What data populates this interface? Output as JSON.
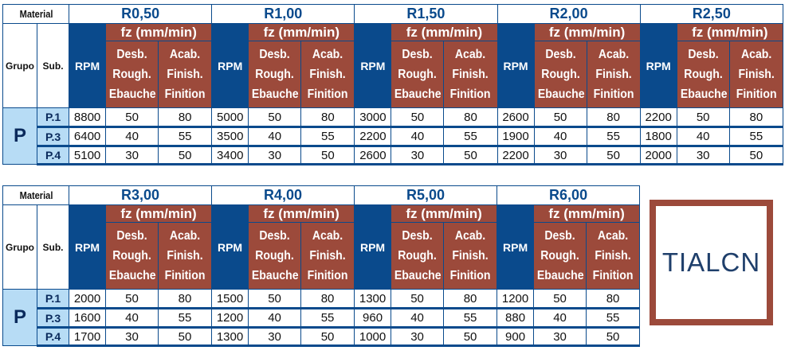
{
  "header": {
    "material": "Material",
    "grupo": "Grupo",
    "sub": "Sub.",
    "rpm": "RPM",
    "fz": "fz (mm/min)",
    "desb": [
      "Desb.",
      "Rough.",
      "Ebauche"
    ],
    "acab": [
      "Acab.",
      "Finish.",
      "Finition"
    ]
  },
  "group": "P",
  "subgroups": [
    "P.1",
    "P.3",
    "P.4"
  ],
  "blocks": [
    {
      "radii": [
        {
          "label": "R0,50",
          "rows": [
            [
              "8800",
              "50",
              "80"
            ],
            [
              "6400",
              "40",
              "55"
            ],
            [
              "5100",
              "30",
              "50"
            ]
          ]
        },
        {
          "label": "R1,00",
          "rows": [
            [
              "5000",
              "50",
              "80"
            ],
            [
              "3500",
              "40",
              "55"
            ],
            [
              "3400",
              "30",
              "50"
            ]
          ]
        },
        {
          "label": "R1,50",
          "rows": [
            [
              "3000",
              "50",
              "80"
            ],
            [
              "2200",
              "40",
              "55"
            ],
            [
              "2600",
              "30",
              "50"
            ]
          ]
        },
        {
          "label": "R2,00",
          "rows": [
            [
              "2600",
              "50",
              "80"
            ],
            [
              "1900",
              "40",
              "55"
            ],
            [
              "2200",
              "30",
              "50"
            ]
          ]
        },
        {
          "label": "R2,50",
          "rows": [
            [
              "2200",
              "50",
              "80"
            ],
            [
              "1800",
              "40",
              "55"
            ],
            [
              "2000",
              "30",
              "50"
            ]
          ]
        }
      ]
    },
    {
      "radii": [
        {
          "label": "R3,00",
          "rows": [
            [
              "2000",
              "50",
              "80"
            ],
            [
              "1600",
              "40",
              "55"
            ],
            [
              "1700",
              "30",
              "50"
            ]
          ]
        },
        {
          "label": "R4,00",
          "rows": [
            [
              "1500",
              "50",
              "80"
            ],
            [
              "1200",
              "40",
              "55"
            ],
            [
              "1300",
              "30",
              "50"
            ]
          ]
        },
        {
          "label": "R5,00",
          "rows": [
            [
              "1300",
              "50",
              "80"
            ],
            [
              "960",
              "40",
              "55"
            ],
            [
              "1000",
              "30",
              "50"
            ]
          ]
        },
        {
          "label": "R6,00",
          "rows": [
            [
              "1200",
              "50",
              "80"
            ],
            [
              "880",
              "40",
              "55"
            ],
            [
              "900",
              "30",
              "50"
            ]
          ]
        }
      ]
    }
  ],
  "coating": {
    "label": "TIALCN",
    "border_color": "#9c4a3b",
    "text_color": "#1f3f6b"
  },
  "colors": {
    "blue": "#0a4a8c",
    "brown": "#9c4a3b",
    "light_blue": "#b7dcf5"
  }
}
